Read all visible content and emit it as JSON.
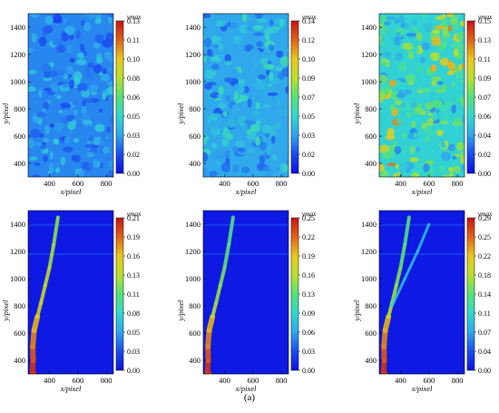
{
  "figure": {
    "caption": "(a)"
  },
  "colormap": {
    "stops": [
      "#0c10e0",
      "#1a4bf0",
      "#2fa6ee",
      "#32d7d0",
      "#55e27a",
      "#b8e02d",
      "#e9c81c",
      "#e0641a",
      "#c81414"
    ]
  },
  "chart_data": [
    {
      "type": "heatmap",
      "title": "",
      "xlabel": "x/pixel",
      "ylabel": "y/pixel",
      "xticks": [
        "400",
        "600",
        "800"
      ],
      "yticks": [
        "400",
        "600",
        "800",
        "1000",
        "1200",
        "1400"
      ],
      "xlim": [
        250,
        850
      ],
      "ylim": [
        1500,
        300
      ],
      "colorbar_label": "γmax",
      "colorbar_ticks": [
        "0.13",
        "0.11",
        "0.10",
        "0.08",
        "0.06",
        "0.05",
        "0.03",
        "0.02",
        "0.00"
      ],
      "colorbar_range": [
        0.0,
        0.13
      ],
      "field": "uniform-low",
      "level": 0.03
    },
    {
      "type": "heatmap",
      "title": "",
      "xlabel": "x/pixel",
      "ylabel": "y/pixel",
      "xticks": [
        "400",
        "600",
        "800"
      ],
      "yticks": [
        "400",
        "600",
        "800",
        "1000",
        "1200",
        "1400"
      ],
      "xlim": [
        250,
        850
      ],
      "ylim": [
        1500,
        300
      ],
      "colorbar_label": "γmax",
      "colorbar_ticks": [
        "0.14",
        "0.12",
        "0.10",
        "0.09",
        "0.07",
        "0.05",
        "0.03",
        "0.02",
        "0.00"
      ],
      "colorbar_range": [
        0.0,
        0.14
      ],
      "field": "uniform-low",
      "level": 0.04
    },
    {
      "type": "heatmap",
      "title": "",
      "xlabel": "x/pixel",
      "ylabel": "y/pixel",
      "xticks": [
        "400",
        "600",
        "800"
      ],
      "yticks": [
        "400",
        "600",
        "800",
        "1000",
        "1200",
        "1400"
      ],
      "xlim": [
        250,
        850
      ],
      "ylim": [
        1500,
        300
      ],
      "colorbar_label": "γmax",
      "colorbar_ticks": [
        "0.15",
        "0.13",
        "0.11",
        "0.09",
        "0.07",
        "0.06",
        "0.04",
        "0.02",
        "0.00"
      ],
      "colorbar_range": [
        0.0,
        0.15
      ],
      "field": "uniform-mid",
      "level": 0.06
    },
    {
      "type": "heatmap",
      "title": "",
      "xlabel": "x/pixel",
      "ylabel": "y/pixel",
      "xticks": [
        "400",
        "600",
        "800"
      ],
      "yticks": [
        "400",
        "600",
        "800",
        "1000",
        "1200",
        "1400"
      ],
      "xlim": [
        250,
        850
      ],
      "ylim": [
        1500,
        300
      ],
      "colorbar_label": "γmax",
      "colorbar_ticks": [
        "0.21",
        "0.19",
        "0.16",
        "0.13",
        "0.11",
        "0.08",
        "0.05",
        "0.03",
        "0.00"
      ],
      "colorbar_range": [
        0.0,
        0.21
      ],
      "field": "shear-band",
      "band_peak": 0.21,
      "band_tail": 0.06
    },
    {
      "type": "heatmap",
      "title": "",
      "xlabel": "x/pixel",
      "ylabel": "y/pixel",
      "xticks": [
        "400",
        "600",
        "800"
      ],
      "yticks": [
        "400",
        "600",
        "800",
        "1000",
        "1200",
        "1400"
      ],
      "xlim": [
        250,
        850
      ],
      "ylim": [
        1500,
        300
      ],
      "colorbar_label": "γmax",
      "colorbar_ticks": [
        "0.25",
        "0.22",
        "0.19",
        "0.16",
        "0.13",
        "0.09",
        "0.06",
        "0.03",
        "0.00"
      ],
      "colorbar_range": [
        0.0,
        0.25
      ],
      "field": "shear-band",
      "band_peak": 0.25,
      "band_tail": 0.05
    },
    {
      "type": "heatmap",
      "title": "",
      "xlabel": "x/pixel",
      "ylabel": "y/pixel",
      "xticks": [
        "400",
        "600",
        "800"
      ],
      "yticks": [
        "400",
        "600",
        "800",
        "1000",
        "1200",
        "1400"
      ],
      "xlim": [
        250,
        850
      ],
      "ylim": [
        1500,
        300
      ],
      "colorbar_label": "γmax",
      "colorbar_ticks": [
        "0.29",
        "0.25",
        "0.22",
        "0.18",
        "0.14",
        "0.11",
        "0.07",
        "0.04",
        "0.00"
      ],
      "colorbar_range": [
        0.0,
        0.29
      ],
      "field": "shear-band-split",
      "band_peak": 0.29,
      "band_tail": 0.06
    }
  ]
}
